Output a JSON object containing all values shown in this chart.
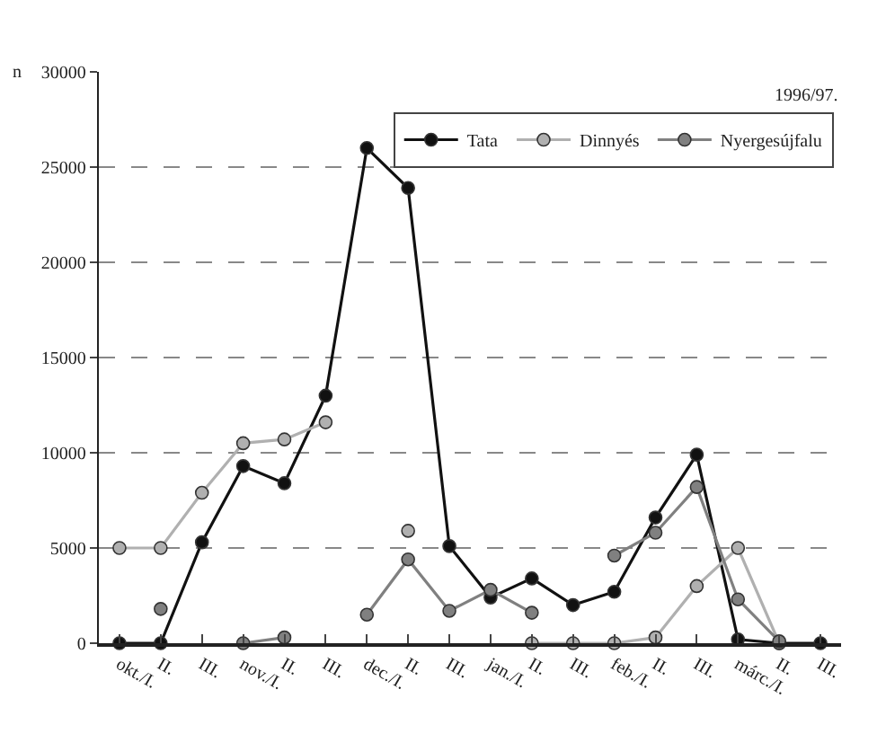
{
  "chart_data": {
    "type": "line",
    "ylabel": "n",
    "annotations": [
      "1996/97."
    ],
    "categories": [
      "okt./I.",
      "II.",
      "III.",
      "nov./I.",
      "II.",
      "III.",
      "dec./I.",
      "II.",
      "III.",
      "jan./I.",
      "II.",
      "III.",
      "feb./I.",
      "II.",
      "III.",
      "márc./I.",
      "II.",
      "III."
    ],
    "series": [
      {
        "name": "Tata",
        "color": "#111111",
        "values": [
          0,
          0,
          5300,
          9300,
          8400,
          13000,
          26000,
          23900,
          5100,
          2400,
          3400,
          2000,
          2700,
          6600,
          9900,
          200,
          0,
          0
        ]
      },
      {
        "name": "Dinnyés",
        "color": "#b0b0b0",
        "values": [
          5000,
          5000,
          7900,
          10500,
          10700,
          11600,
          null,
          5900,
          null,
          null,
          0,
          0,
          0,
          300,
          3000,
          5000,
          0,
          null
        ]
      },
      {
        "name": "Nyergesújfalu",
        "color": "#808080",
        "values": [
          null,
          1800,
          null,
          0,
          300,
          null,
          1500,
          4400,
          1700,
          2800,
          1600,
          null,
          4600,
          5800,
          8200,
          2300,
          100,
          null
        ]
      }
    ],
    "ylim": [
      0,
      30000
    ],
    "yticks": [
      0,
      5000,
      10000,
      15000,
      20000,
      25000,
      30000
    ],
    "grid": "y",
    "legend": "top right",
    "marker": "circle",
    "line_style": "solid"
  }
}
